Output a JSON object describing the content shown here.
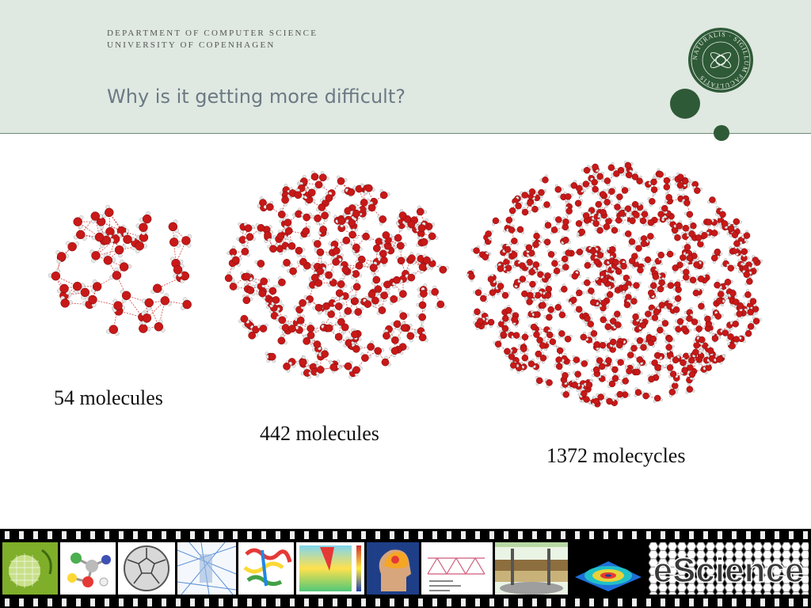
{
  "header": {
    "department": "DEPARTMENT OF COMPUTER SCIENCE",
    "university": "UNIVERSITY OF COPENHAGEN",
    "title": "Why is it getting more difficult?",
    "seal_text": "NATURALIS · SIGILLUM FACULTATIS"
  },
  "colors": {
    "header_bg": "#dfe8e1",
    "brand_green": "#2f5a37",
    "title_gray": "#6b7a84",
    "oxygen_red": "#c81818",
    "hydrogen_gray": "#e8e8e8"
  },
  "clusters": [
    {
      "caption": "54 molecules"
    },
    {
      "caption": "442 molecules"
    },
    {
      "caption": "1372 molecycles"
    }
  ],
  "filmstrip": {
    "frames": [
      "leaf-grid-icon",
      "molecule-model-icon",
      "fullerene-icon",
      "blue-lines-icon",
      "protein-ribbon-icon",
      "heatmap-icon",
      "brain-head-icon",
      "truss-diagram-icon",
      "well-diagram-icon",
      "wave-surface-icon",
      "escience-logo-icon"
    ],
    "logo_text": "eScience"
  }
}
